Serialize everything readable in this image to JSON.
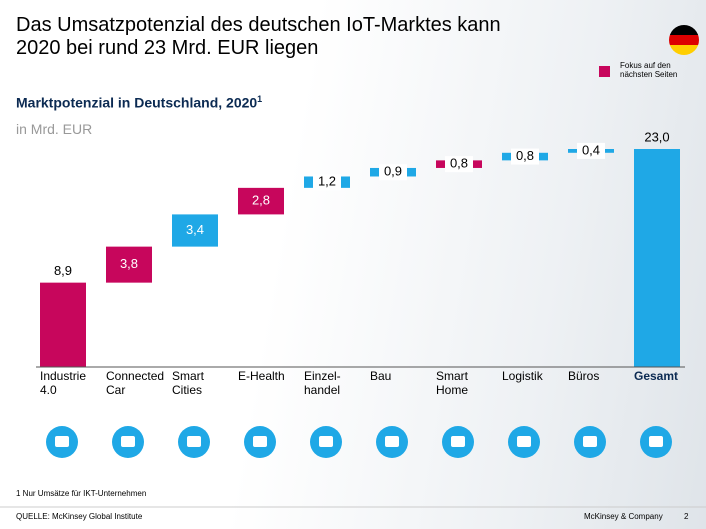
{
  "header": {
    "title": "Das Umsatzpotenzial des deutschen IoT-Marktes kann\n2020 bei rund 23 Mrd. EUR liegen"
  },
  "chart_data": {
    "type": "waterfall",
    "subtitle": "Marktpotenzial in Deutschland, 2020",
    "subtitle_footnote_mark": "1",
    "unit_label": "in Mrd. EUR",
    "categories": [
      "Industrie\n4.0",
      "Connected\nCar",
      "Smart\nCities",
      "E-Health",
      "Einzel-\nhandel",
      "Bau",
      "Smart\nHome",
      "Logistik",
      "Büros",
      "Gesamt"
    ],
    "measure": [
      "absolute",
      "relative",
      "relative",
      "relative",
      "relative",
      "relative",
      "relative",
      "relative",
      "relative",
      "total"
    ],
    "values": [
      8.9,
      3.8,
      3.4,
      2.8,
      1.2,
      0.9,
      0.8,
      0.8,
      0.4,
      23.0
    ],
    "value_labels": [
      "8,9",
      "3,8",
      "3,4",
      "2,8",
      "1,2",
      "0,9",
      "0,8",
      "0,8",
      "0,4",
      "23,0"
    ],
    "colors": [
      "#c7065c",
      "#c7065c",
      "#1fa8e6",
      "#c7065c",
      "#1fa8e6",
      "#1fa8e6",
      "#c7065c",
      "#1fa8e6",
      "#1fa8e6",
      "#1fa8e6"
    ],
    "ylim": [
      0,
      23
    ],
    "legend": {
      "label": "Fokus auf den\nnächsten Seiten",
      "color": "#c7065c",
      "position": "upper right"
    }
  },
  "footer": {
    "footnote": "1 Nur Umsätze für IKT-Unternehmen",
    "source": "QUELLE: McKinsey Global Institute",
    "company": "McKinsey & Company",
    "page": "2"
  }
}
